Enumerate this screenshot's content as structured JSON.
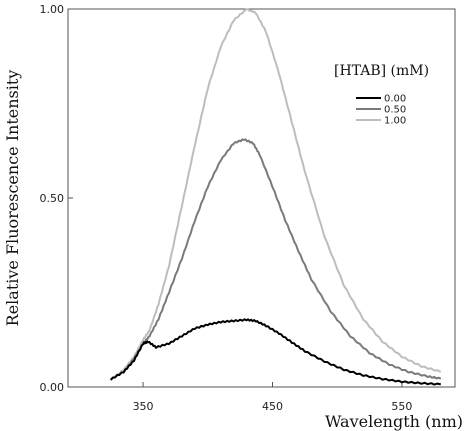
{
  "chart_data": {
    "type": "line",
    "xlabel": "Wavelength (nm)",
    "ylabel": "Relative Fluorescence Intensity",
    "xlim": [
      292,
      591
    ],
    "ylim": [
      0,
      1.0
    ],
    "x_ticks": [
      350,
      450,
      550
    ],
    "y_ticks": [
      "0.00",
      "0.50",
      "1.00"
    ],
    "y_tick_values": [
      0,
      0.5,
      1.0
    ],
    "grid": false,
    "legend": {
      "title": "[HTAB] (mM)",
      "placement": "top-right",
      "entries": [
        "0.00",
        "0.50",
        "1.00"
      ]
    },
    "series": [
      {
        "name": "0.00",
        "color": "#000000",
        "x": [
          325,
          335,
          343,
          350,
          354,
          360,
          370,
          380,
          390,
          400,
          410,
          420,
          430,
          437,
          445,
          455,
          465,
          475,
          490,
          505,
          520,
          535,
          550,
          565,
          580
        ],
        "y": [
          0.02,
          0.04,
          0.07,
          0.115,
          0.12,
          0.105,
          0.115,
          0.135,
          0.155,
          0.165,
          0.172,
          0.175,
          0.178,
          0.175,
          0.162,
          0.142,
          0.118,
          0.095,
          0.068,
          0.046,
          0.031,
          0.021,
          0.014,
          0.01,
          0.007
        ]
      },
      {
        "name": "0.50",
        "color": "#7a7a7a",
        "x": [
          325,
          335,
          343,
          350,
          355,
          362,
          370,
          380,
          390,
          400,
          410,
          420,
          428,
          435,
          440,
          450,
          460,
          470,
          480,
          495,
          510,
          525,
          540,
          555,
          570,
          580
        ],
        "y": [
          0.02,
          0.04,
          0.075,
          0.115,
          0.135,
          0.18,
          0.25,
          0.34,
          0.44,
          0.53,
          0.6,
          0.645,
          0.655,
          0.645,
          0.615,
          0.53,
          0.44,
          0.36,
          0.285,
          0.2,
          0.135,
          0.09,
          0.06,
          0.04,
          0.028,
          0.022
        ]
      },
      {
        "name": "1.00",
        "color": "#bdbdbd",
        "x": [
          325,
          335,
          343,
          350,
          355,
          362,
          370,
          380,
          390,
          400,
          410,
          420,
          430,
          437,
          445,
          455,
          465,
          475,
          490,
          505,
          520,
          535,
          550,
          565,
          580
        ],
        "y": [
          0.02,
          0.045,
          0.08,
          0.125,
          0.15,
          0.22,
          0.32,
          0.48,
          0.64,
          0.79,
          0.9,
          0.97,
          1.0,
          0.99,
          0.94,
          0.83,
          0.7,
          0.57,
          0.4,
          0.27,
          0.18,
          0.12,
          0.08,
          0.055,
          0.04
        ]
      }
    ]
  }
}
